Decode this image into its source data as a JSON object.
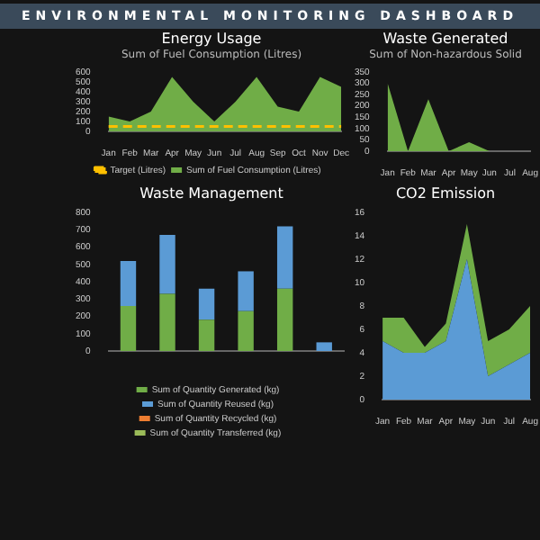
{
  "chart_data": [
    {
      "type": "area",
      "title": "Energy Usage",
      "subtitle": "Sum of Fuel Consumption (Litres)",
      "annotations": [
        "ENVIRONMENTAL MONITORING DASHBOARD"
      ],
      "categories": [
        "Jan",
        "Feb",
        "Mar",
        "Apr",
        "May",
        "Jun",
        "Jul",
        "Aug",
        "Sep",
        "Oct",
        "Nov",
        "Dec"
      ],
      "ylim": [
        0,
        600
      ],
      "yticks": [
        0,
        100,
        200,
        300,
        400,
        500,
        600
      ],
      "grid": false,
      "legend": "bottom",
      "series": [
        {
          "name": "Sum of Fuel Consumption (Litres)",
          "color": "#70ad47",
          "values": [
            150,
            100,
            200,
            550,
            300,
            100,
            300,
            550,
            250,
            200,
            550,
            450
          ]
        },
        {
          "name": "Target (Litres)",
          "type": "line",
          "line_style": "dashed",
          "color": "#ffc000",
          "values": [
            50,
            50,
            50,
            50,
            50,
            50,
            50,
            50,
            50,
            50,
            50,
            50
          ]
        }
      ]
    },
    {
      "type": "area",
      "title": "Waste Generated",
      "subtitle": "Sum of Non-hazardous Solid",
      "categories": [
        "Jan",
        "Feb",
        "Mar",
        "Apr",
        "May",
        "Jun",
        "Jul",
        "Aug"
      ],
      "ylim": [
        0,
        350
      ],
      "yticks": [
        0,
        50,
        100,
        150,
        200,
        250,
        300,
        350
      ],
      "grid": false,
      "series": [
        {
          "color": "#70ad47",
          "values": [
            300,
            0,
            230,
            0,
            40,
            0,
            0,
            0
          ]
        }
      ]
    },
    {
      "type": "bar",
      "title": "Waste Management",
      "stacked": true,
      "categories": [
        null,
        null,
        null,
        null,
        null,
        null
      ],
      "ylim": [
        0,
        800
      ],
      "yticks": [
        0,
        100,
        200,
        300,
        400,
        500,
        600,
        700,
        800
      ],
      "grid": false,
      "legend": "bottom",
      "series": [
        {
          "name": "Sum of Quantity Generated (kg)",
          "color": "#70ad47",
          "values": [
            260,
            330,
            180,
            230,
            360,
            0
          ]
        },
        {
          "name": "Sum of Quantity Reused (kg)",
          "color": "#5b9bd5",
          "values": [
            260,
            340,
            180,
            230,
            360,
            50
          ]
        },
        {
          "name": "Sum of Quantity Recycled (kg)",
          "color": "#ed7d31",
          "values": [
            null,
            null,
            null,
            null,
            null,
            null
          ]
        },
        {
          "name": "Sum of Quantity Transferred (kg)",
          "color": "#9bbb59",
          "values": [
            null,
            null,
            null,
            null,
            null,
            null
          ]
        }
      ]
    },
    {
      "type": "area",
      "title": "CO2 Emission",
      "stacked": true,
      "categories": [
        "Jan",
        "Feb",
        "Mar",
        "Apr",
        "May",
        "Jun",
        "Jul",
        "Aug"
      ],
      "ylim": [
        0,
        16
      ],
      "yticks": [
        0,
        2,
        4,
        6,
        8,
        10,
        12,
        14,
        16
      ],
      "grid": false,
      "series": [
        {
          "color": "#5b9bd5",
          "values": [
            5,
            4,
            4,
            5,
            12,
            2,
            3,
            4
          ]
        },
        {
          "color": "#70ad47",
          "values": [
            2,
            3,
            0.5,
            1.5,
            3,
            3,
            3,
            4
          ]
        }
      ]
    }
  ]
}
